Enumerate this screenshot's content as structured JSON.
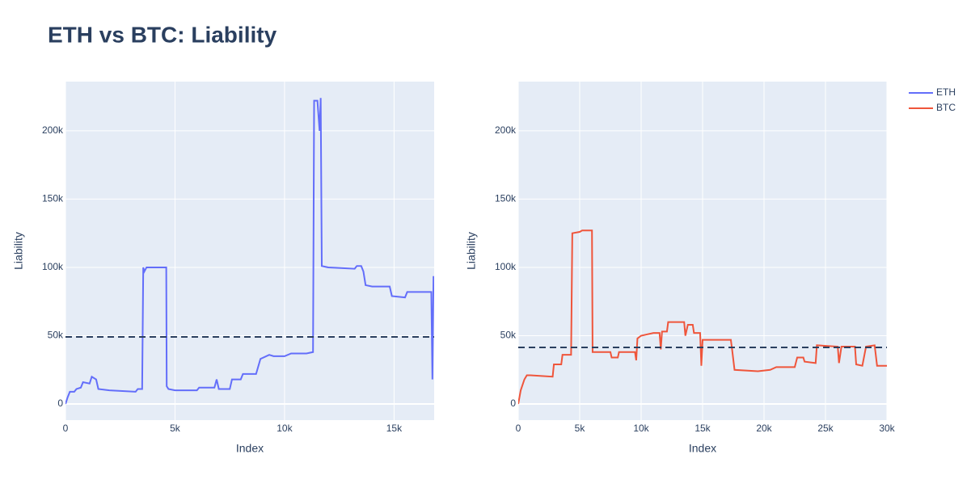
{
  "title": "ETH vs BTC: Liability",
  "legend": "top-right",
  "chart_data": [
    {
      "type": "line",
      "xlabel": "Index",
      "ylabel": "Liability",
      "x": [
        0,
        100,
        200,
        400,
        500,
        700,
        800,
        1100,
        1200,
        1400,
        1500,
        2000,
        3200,
        3300,
        3500,
        3550,
        3600,
        3700,
        4600,
        4620,
        4700,
        5000,
        5500,
        6000,
        6100,
        6800,
        6900,
        7000,
        7500,
        7600,
        8000,
        8100,
        8700,
        8900,
        9300,
        9500,
        10000,
        10300,
        11000,
        11300,
        11350,
        11500,
        11600,
        11650,
        11700,
        12000,
        13200,
        13300,
        13500,
        13600,
        13700,
        14000,
        14800,
        14900,
        15500,
        15600,
        16500,
        16700,
        16750,
        16800,
        16830
      ],
      "series": [
        {
          "name": "ETH",
          "color": "#636efa",
          "values": [
            0,
            5000,
            9000,
            9000,
            11000,
            12000,
            16000,
            15000,
            20000,
            18000,
            11000,
            10000,
            9000,
            11000,
            11000,
            100000,
            97000,
            100000,
            100000,
            13000,
            11000,
            10000,
            10000,
            10000,
            12000,
            12000,
            18000,
            11000,
            11000,
            18000,
            18000,
            22000,
            22000,
            33000,
            36000,
            35000,
            35000,
            37000,
            37000,
            38000,
            222000,
            222000,
            200000,
            224000,
            101000,
            100000,
            99000,
            101000,
            101000,
            97000,
            87000,
            86000,
            86000,
            79000,
            78000,
            82000,
            82000,
            82000,
            18000,
            93000,
            93000
          ]
        }
      ],
      "hline": 49100,
      "xlim": [
        0,
        16830
      ],
      "ylim": [
        -11800,
        236000
      ],
      "xticks": [
        0,
        {
          "value": 5000,
          "label": "5k"
        },
        {
          "value": 10000,
          "label": "10k"
        },
        {
          "value": 15000,
          "label": "15k"
        }
      ],
      "yticks": [
        0,
        {
          "value": 50000,
          "label": "50k"
        },
        {
          "value": 100000,
          "label": "100k"
        },
        {
          "value": 150000,
          "label": "150k"
        },
        {
          "value": 200000,
          "label": "200k"
        }
      ],
      "grid": true
    },
    {
      "type": "line",
      "xlabel": "Index",
      "ylabel": "Liability",
      "x": [
        0,
        200,
        500,
        700,
        1000,
        2800,
        2900,
        3500,
        3600,
        4300,
        4400,
        5000,
        5200,
        6000,
        6050,
        6500,
        7500,
        7600,
        8100,
        8200,
        9000,
        9500,
        9600,
        9700,
        10000,
        10500,
        11000,
        11500,
        11600,
        11700,
        12100,
        12200,
        13500,
        13600,
        13800,
        14200,
        14300,
        14800,
        14900,
        15000,
        16000,
        17300,
        17400,
        17600,
        19500,
        20500,
        21000,
        22500,
        22700,
        23200,
        23300,
        24200,
        24300,
        26000,
        26100,
        26300,
        27400,
        27500,
        28000,
        28300,
        29000,
        29200,
        30000
      ],
      "series": [
        {
          "name": "BTC",
          "color": "#ef553b",
          "values": [
            0,
            10000,
            18000,
            21000,
            21000,
            20000,
            29000,
            29000,
            36000,
            36000,
            125000,
            126000,
            127000,
            127000,
            38000,
            38000,
            38000,
            34000,
            34000,
            38000,
            38000,
            38000,
            32000,
            48000,
            50000,
            51000,
            52000,
            52000,
            40000,
            53000,
            53000,
            60000,
            60000,
            50000,
            58000,
            58000,
            52000,
            52000,
            28000,
            47000,
            47000,
            47000,
            40000,
            25000,
            24000,
            25000,
            27000,
            27000,
            34000,
            34000,
            31000,
            30000,
            43000,
            42000,
            30000,
            42000,
            42000,
            29000,
            28000,
            42000,
            43000,
            28000,
            28000
          ]
        }
      ],
      "hline": 41400,
      "xlim": [
        0,
        30000
      ],
      "ylim": [
        -11800,
        236000
      ],
      "xticks": [
        0,
        {
          "value": 5000,
          "label": "5k"
        },
        {
          "value": 10000,
          "label": "10k"
        },
        {
          "value": 15000,
          "label": "15k"
        },
        {
          "value": 20000,
          "label": "20k"
        },
        {
          "value": 25000,
          "label": "25k"
        },
        {
          "value": 30000,
          "label": "30k"
        }
      ],
      "yticks": [
        0,
        {
          "value": 50000,
          "label": "50k"
        },
        {
          "value": 100000,
          "label": "100k"
        },
        {
          "value": 150000,
          "label": "150k"
        },
        {
          "value": 200000,
          "label": "200k"
        }
      ],
      "grid": true
    }
  ]
}
